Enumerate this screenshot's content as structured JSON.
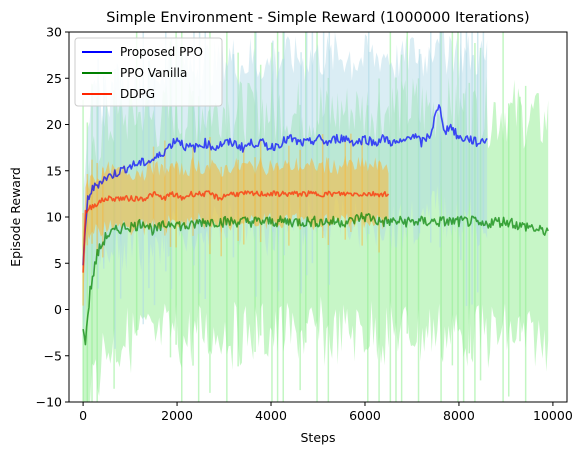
{
  "chart_data": {
    "type": "line",
    "title": "Simple Environment - Simple Reward (1000000 Iterations)",
    "xlabel": "Steps",
    "ylabel": "Episode Reward",
    "xlim": [
      -300,
      10300
    ],
    "ylim": [
      -10,
      30
    ],
    "xticks": [
      0,
      2000,
      4000,
      6000,
      8000,
      10000
    ],
    "yticks": [
      -10,
      -5,
      0,
      5,
      10,
      15,
      20,
      25,
      30
    ],
    "xtick_labels": [
      "0",
      "2000",
      "4000",
      "6000",
      "8000",
      "10000"
    ],
    "ytick_labels": [
      "−10",
      "−5",
      "0",
      "5",
      "10",
      "15",
      "20",
      "25",
      "30"
    ],
    "legend_position": "top-left",
    "series": [
      {
        "name": "Proposed PPO",
        "color": "#0000ff",
        "band_color": "#add8e6",
        "x": [
          0,
          100,
          200,
          400,
          600,
          800,
          1000,
          1200,
          1400,
          1600,
          1800,
          2000,
          2200,
          2400,
          2600,
          2800,
          3000,
          3200,
          3400,
          3600,
          3800,
          4000,
          4200,
          4400,
          4600,
          4800,
          5000,
          5200,
          5400,
          5600,
          5800,
          6000,
          6200,
          6400,
          6600,
          6800,
          7000,
          7200,
          7400,
          7500,
          7600,
          7700,
          7800,
          8000,
          8200,
          8400,
          8600
        ],
        "values": [
          5,
          12,
          13,
          14,
          14.5,
          15,
          15.5,
          15.8,
          16,
          16.5,
          17.5,
          18.5,
          17.5,
          17.5,
          18,
          17.5,
          18,
          18,
          17.5,
          18,
          18,
          17.5,
          18,
          18.5,
          18,
          18,
          18.5,
          18,
          18.5,
          18.5,
          18,
          18.5,
          18,
          18.5,
          18,
          18,
          19,
          18,
          19,
          21,
          22,
          19,
          20,
          18.5,
          18.5,
          18,
          18.5
        ]
      },
      {
        "name": "PPO Vanilla",
        "color": "#008000",
        "band_color": "#90ee90",
        "x": [
          0,
          50,
          150,
          300,
          500,
          700,
          900,
          1100,
          1300,
          1500,
          1700,
          1900,
          2100,
          2300,
          2500,
          2700,
          2900,
          3100,
          3300,
          3500,
          3700,
          3900,
          4100,
          4300,
          4500,
          4700,
          4900,
          5100,
          5300,
          5500,
          5700,
          5900,
          6100,
          6300,
          6500,
          6700,
          6900,
          7100,
          7300,
          7500,
          7700,
          7900,
          8100,
          8300,
          8500,
          8700,
          8900,
          9100,
          9300,
          9500,
          9700,
          9900
        ],
        "values": [
          -2.5,
          -3.3,
          2,
          6,
          8,
          8.5,
          9,
          9,
          9.5,
          8.5,
          9,
          9.5,
          9,
          9,
          9.5,
          9.5,
          9.5,
          9.5,
          9.5,
          9.5,
          9.5,
          9.5,
          9.5,
          9.5,
          9.5,
          9.5,
          9.5,
          9.5,
          9.5,
          9.5,
          9.5,
          10,
          10,
          9.5,
          9.5,
          9.5,
          9.5,
          9.5,
          9.5,
          9.5,
          9.5,
          9.5,
          9.5,
          9.5,
          9,
          9.5,
          9.5,
          9.5,
          9,
          9,
          8.5,
          8.5
        ]
      },
      {
        "name": "DDPG",
        "color": "#ff2400",
        "band_color": "#f4b942",
        "x": [
          0,
          50,
          150,
          300,
          500,
          700,
          900,
          1100,
          1300,
          1500,
          1700,
          1900,
          2100,
          2300,
          2500,
          2700,
          2900,
          3100,
          3300,
          3500,
          3700,
          3900,
          4100,
          4300,
          4500,
          4700,
          4900,
          5100,
          5300,
          5500,
          5700,
          5900,
          6100,
          6300,
          6500
        ],
        "values": [
          4,
          10.5,
          11,
          11.5,
          12,
          12,
          12,
          12,
          12,
          12.5,
          12,
          12.5,
          12,
          12.5,
          12.5,
          12.5,
          12,
          12.5,
          12.5,
          12.5,
          12.5,
          12.5,
          12.5,
          12.5,
          12.5,
          12.5,
          12.5,
          12.5,
          12.5,
          12.5,
          12.5,
          12.5,
          12.5,
          12.5,
          12.5
        ]
      }
    ]
  }
}
